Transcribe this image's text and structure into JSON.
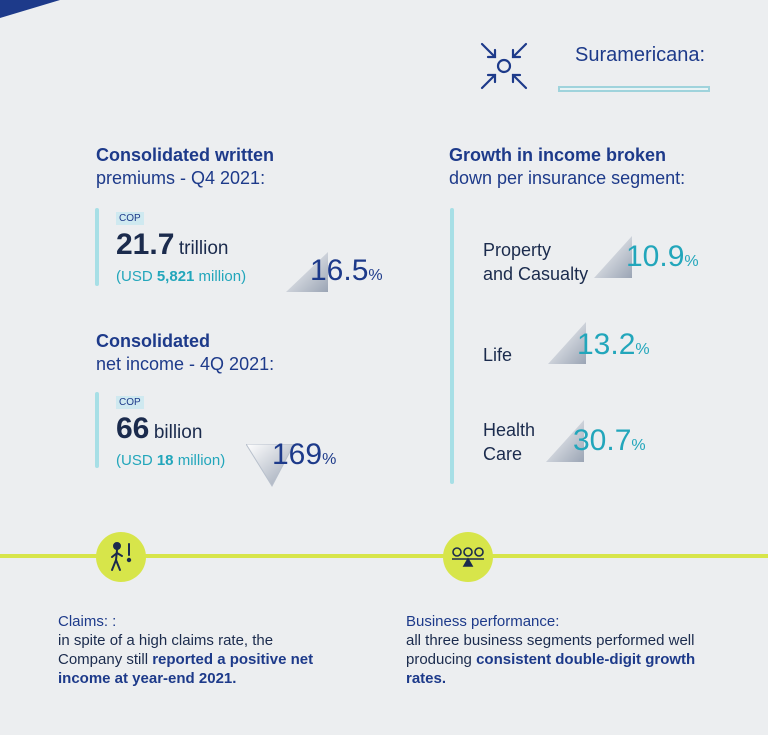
{
  "brand": {
    "name": "Suramericana:",
    "icon": "arrows-converging-icon"
  },
  "written_premiums": {
    "title_bold": "Consolidated written",
    "title_rest": "premiums - Q4 2021:",
    "currency": "COP",
    "value": "21.7",
    "unit": "trillion",
    "usd_prefix": "(USD ",
    "usd_value": "5,821",
    "usd_suffix": " million)",
    "growth": "16.5",
    "growth_unit": "%"
  },
  "net_income": {
    "title_bold": "Consolidated",
    "title_rest": "net income - 4Q 2021:",
    "currency": "COP",
    "value": "66",
    "unit": "billion",
    "usd_prefix": "(USD ",
    "usd_value": "18",
    "usd_suffix": " million)",
    "growth": "169",
    "growth_unit": "%"
  },
  "segments": {
    "title_bold": "Growth in income broken",
    "title_rest": "down per insurance segment:",
    "items": [
      {
        "line1": "Property",
        "line2": "and Casualty",
        "value": "10.9",
        "unit": "%"
      },
      {
        "line1": "Life",
        "line2": "",
        "value": "13.2",
        "unit": "%"
      },
      {
        "line1": "Health",
        "line2": "Care",
        "value": "30.7",
        "unit": "%"
      }
    ]
  },
  "claims": {
    "icon": "person-warning-icon",
    "title": "Claims: :",
    "text_plain": "in spite of a high claims rate, the Company still ",
    "text_bold": "reported a positive net income at year-end 2021."
  },
  "performance": {
    "icon": "balance-scale-icon",
    "title": "Business performance:",
    "text_plain": "all three business segments performed well producing ",
    "text_bold": "consistent double-digit growth rates."
  }
}
